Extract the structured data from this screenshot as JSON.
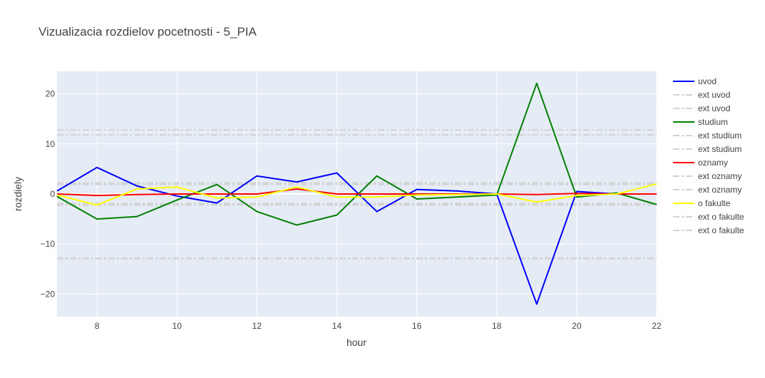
{
  "chart_data": {
    "type": "line",
    "title": "Vizualizacia rozdielov pocetnosti - 5_PIA",
    "xlabel": "hour",
    "ylabel": "rozdiely",
    "xlim": [
      7,
      22
    ],
    "ylim": [
      -24.5,
      24.5
    ],
    "xticks": [
      8,
      10,
      12,
      14,
      16,
      18,
      20,
      22
    ],
    "yticks": [
      -20,
      -10,
      0,
      10,
      20
    ],
    "grid": true,
    "legend_position": "right",
    "x": [
      7,
      8,
      9,
      10,
      11,
      12,
      13,
      14,
      15,
      16,
      17,
      18,
      19,
      20,
      21,
      22
    ],
    "series": [
      {
        "name": "uvod",
        "color": "#0000ff",
        "style": "solid",
        "values": [
          0.6,
          5.3,
          1.6,
          -0.4,
          -1.8,
          3.6,
          2.4,
          4.2,
          -3.5,
          0.9,
          0.6,
          0.0,
          -22.0,
          0.5,
          0.0,
          0.0
        ]
      },
      {
        "name": "ext uvod",
        "color": "#d3d3d3",
        "style": "dashdot",
        "constant": 12.8
      },
      {
        "name": "ext uvod",
        "color": "#d3d3d3",
        "style": "dashdot",
        "constant": -12.8
      },
      {
        "name": "studium",
        "color": "#008000",
        "style": "solid",
        "values": [
          -0.5,
          -5.0,
          -4.5,
          -1.2,
          1.9,
          -3.5,
          -6.2,
          -4.2,
          3.6,
          -1.0,
          -0.6,
          -0.2,
          22.1,
          -0.6,
          0.2,
          -2.1
        ]
      },
      {
        "name": "ext studium",
        "color": "#d3d3d3",
        "style": "dashdot",
        "constant": 11.8
      },
      {
        "name": "ext studium",
        "color": "#d3d3d3",
        "style": "dashdot",
        "constant": -12.9
      },
      {
        "name": "oznamy",
        "color": "#ff0000",
        "style": "solid",
        "values": [
          0.0,
          -0.3,
          -0.1,
          0.0,
          0.0,
          0.0,
          1.0,
          0.0,
          0.0,
          0.0,
          0.0,
          0.0,
          -0.1,
          0.1,
          0.0,
          0.0
        ]
      },
      {
        "name": "ext oznamy",
        "color": "#d3d3d3",
        "style": "dashdot",
        "constant": 2.2
      },
      {
        "name": "ext oznamy",
        "color": "#d3d3d3",
        "style": "dashdot",
        "constant": -2.2
      },
      {
        "name": "o fakulte",
        "color": "#ffff00",
        "style": "solid",
        "values": [
          -0.2,
          -2.2,
          1.0,
          1.4,
          -0.8,
          -0.6,
          1.4,
          -0.6,
          -0.6,
          -0.2,
          -0.1,
          0.0,
          -1.6,
          -0.3,
          0.0,
          2.0
        ]
      },
      {
        "name": "ext o fakulte",
        "color": "#d3d3d3",
        "style": "dashdot",
        "constant": 1.9
      },
      {
        "name": "ext o fakulte",
        "color": "#d3d3d3",
        "style": "dashdot",
        "constant": -1.9
      }
    ]
  },
  "colors": {
    "plot_bg": "#e5ecf6",
    "grid": "#ffffff",
    "text": "#444444",
    "title": "#444444"
  }
}
